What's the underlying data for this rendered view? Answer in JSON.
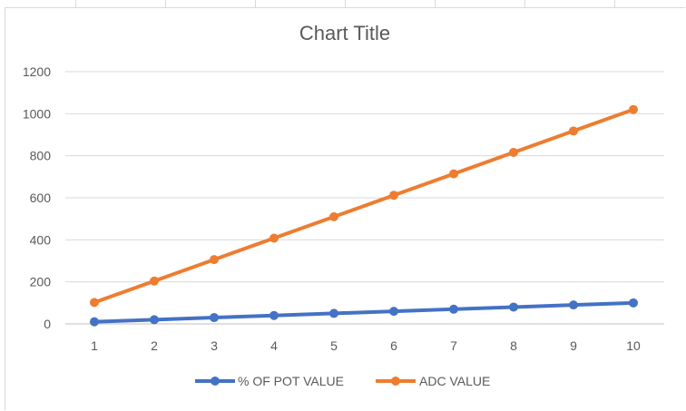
{
  "chart_data": {
    "type": "line",
    "title": "Chart Title",
    "xlabel": "",
    "ylabel": "",
    "x": [
      1,
      2,
      3,
      4,
      5,
      6,
      7,
      8,
      9,
      10
    ],
    "ylim": [
      0,
      1200
    ],
    "yticks": [
      0,
      200,
      400,
      600,
      800,
      1000,
      1200
    ],
    "grid": true,
    "legend": "bottom",
    "series": [
      {
        "name": "% OF POT VALUE",
        "color": "#4472c4",
        "values": [
          10,
          20,
          30,
          40,
          50,
          60,
          70,
          80,
          90,
          100
        ]
      },
      {
        "name": "ADC VALUE",
        "color": "#ed7d31",
        "values": [
          102,
          204,
          306,
          408,
          510,
          612,
          714,
          816,
          918,
          1020
        ]
      }
    ]
  }
}
